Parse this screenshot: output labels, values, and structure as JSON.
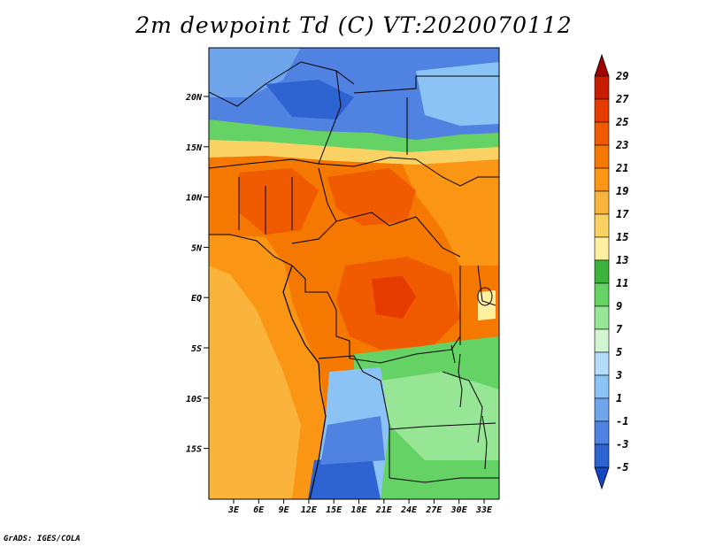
{
  "title": "2m dewpoint Td (C) VT:2020070112",
  "credit": "GrADS: IGES/COLA",
  "map": {
    "lon_ticks": [
      "3E",
      "6E",
      "9E",
      "12E",
      "15E",
      "18E",
      "21E",
      "24E",
      "27E",
      "30E",
      "33E"
    ],
    "lat_ticks": [
      "20N",
      "15N",
      "10N",
      "5N",
      "EQ",
      "5S",
      "10S",
      "15S"
    ]
  },
  "colorbar": {
    "labels": [
      "29",
      "27",
      "25",
      "23",
      "21",
      "19",
      "17",
      "15",
      "13",
      "11",
      "9",
      "7",
      "5",
      "3",
      "1",
      "-1",
      "-3",
      "-5"
    ],
    "colors": [
      "#a00000",
      "#c81e00",
      "#e63c00",
      "#f05a00",
      "#f57800",
      "#fa9614",
      "#fab43c",
      "#fad264",
      "#fff0a0",
      "#3cb43c",
      "#64d264",
      "#96e696",
      "#d2f5d2",
      "#b4dcfa",
      "#8cc3f5",
      "#6ea5eb",
      "#5082e1",
      "#2d64d2",
      "#1446c3"
    ]
  }
}
